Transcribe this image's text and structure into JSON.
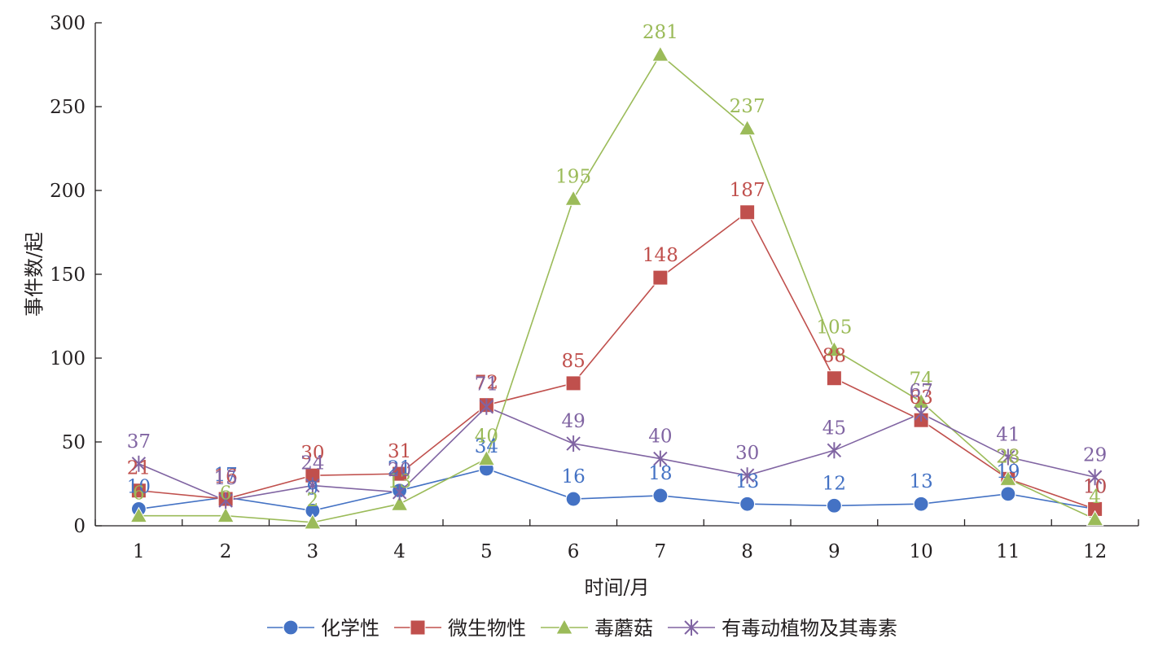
{
  "chart_data": {
    "type": "line",
    "categories": [
      "1",
      "2",
      "3",
      "4",
      "5",
      "6",
      "7",
      "8",
      "9",
      "10",
      "11",
      "12"
    ],
    "xlabel": "时间/月",
    "ylabel": "事件数/起",
    "ylim": [
      0,
      300
    ],
    "yticks": [
      "0",
      "50",
      "100",
      "150",
      "200",
      "250",
      "300"
    ],
    "grid": false,
    "legend_position": "bottom",
    "series": [
      {
        "name": "化学性",
        "color": "#4472c4",
        "marker": "circle",
        "values": [
          10,
          17,
          9,
          21,
          34,
          16,
          18,
          13,
          12,
          13,
          19,
          10
        ]
      },
      {
        "name": "微生物性",
        "color": "#c0504d",
        "marker": "square",
        "values": [
          21,
          16,
          30,
          31,
          72,
          85,
          148,
          187,
          88,
          63,
          28,
          10
        ]
      },
      {
        "name": "毒蘑菇",
        "color": "#9bbb59",
        "marker": "triangle",
        "values": [
          6,
          6,
          2,
          13,
          40,
          195,
          281,
          237,
          105,
          74,
          28,
          4
        ]
      },
      {
        "name": "有毒动植物及其毒素",
        "color": "#8064a2",
        "marker": "star",
        "values": [
          37,
          15,
          24,
          20,
          71,
          49,
          40,
          30,
          45,
          67,
          41,
          29
        ]
      }
    ]
  }
}
